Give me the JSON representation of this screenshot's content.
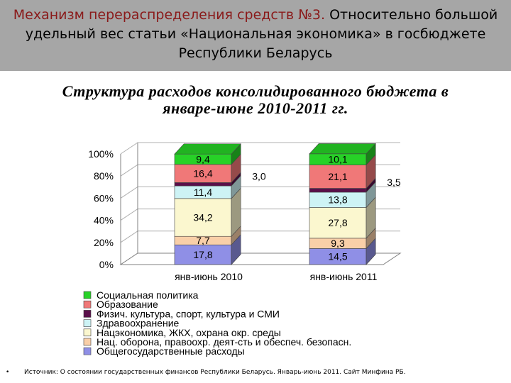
{
  "slide": {
    "title_accent": "Механизм перераспределения средств №3.",
    "title_rest": " Относительно большой удельный вес статьи «Национальная экономика» в госбюджете Республики Беларусь",
    "footer_bullet": "•",
    "footer": "Источник: О состоянии государственных финансов Республики Беларусь. Январь-июнь 2011. Сайт Минфина РБ."
  },
  "colors": {
    "header_bg": "#a6a6a6",
    "title_accent": "#8a1a1a"
  },
  "chart_data": {
    "type": "bar",
    "stacked": true,
    "percent": true,
    "title": "Структура расходов консолидированного бюджета в январе-июне 2010-2011 гг.",
    "categories": [
      "янв-июнь 2010",
      "янв-июнь 2011"
    ],
    "ylim": [
      0,
      100
    ],
    "yticks": [
      "0%",
      "20%",
      "40%",
      "60%",
      "80%",
      "100%"
    ],
    "legend_position": "bottom",
    "series": [
      {
        "name": "Общегосударственные расходы",
        "values": [
          17.8,
          14.5
        ],
        "color": "#8f8fe6"
      },
      {
        "name": "Нац. оборона, правоохр. деят-сть и обеспеч. безопасн.",
        "values": [
          7.7,
          9.3
        ],
        "color": "#f9cfa8"
      },
      {
        "name": "Нацэкономика, ЖКХ, охрана окр. среды",
        "values": [
          34.2,
          27.8
        ],
        "color": "#fbf7cf"
      },
      {
        "name": "Здравоохранение",
        "values": [
          11.4,
          13.8
        ],
        "color": "#cdf3f5"
      },
      {
        "name": "Физич. культура, спорт, культура и СМИ",
        "values": [
          3.0,
          3.5
        ],
        "color": "#5a0f4a"
      },
      {
        "name": "Образование",
        "values": [
          16.4,
          21.1
        ],
        "color": "#f07878"
      },
      {
        "name": "Социальная политика",
        "values": [
          9.4,
          10.1
        ],
        "color": "#27d227"
      }
    ],
    "legend_order": [
      6,
      5,
      4,
      3,
      2,
      1,
      0
    ],
    "outside_labels": [
      {
        "series": 4,
        "category": 0,
        "text": "3,0"
      },
      {
        "series": 4,
        "category": 1,
        "text": "3,5"
      }
    ]
  }
}
